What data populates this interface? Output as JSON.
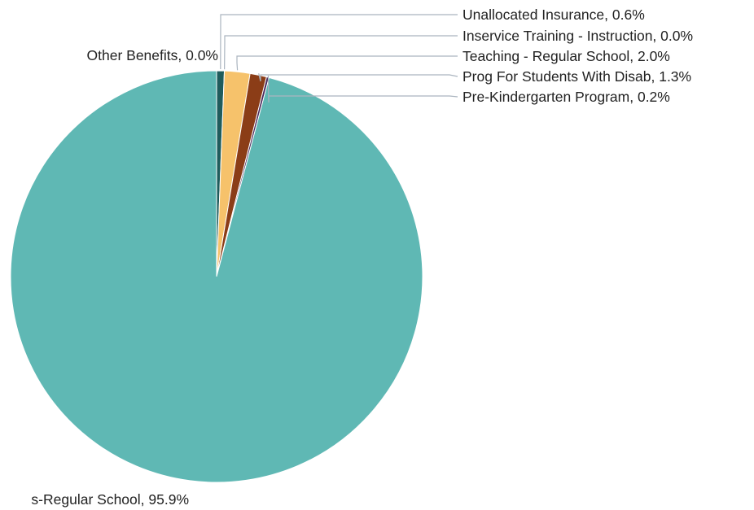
{
  "chart_data": {
    "type": "pie",
    "title": "",
    "slices": [
      {
        "label": "Other Benefits",
        "value": 0.0,
        "display": "Other Benefits, 0.0%",
        "color": "#1f5c5c"
      },
      {
        "label": "Unallocated Insurance",
        "value": 0.6,
        "display": "Unallocated Insurance, 0.6%",
        "color": "#1f5c5c"
      },
      {
        "label": "Inservice Training - Instruction",
        "value": 0.0,
        "display": "Inservice Training - Instruction, 0.0%",
        "color": "#5aa6a6"
      },
      {
        "label": "Teaching - Regular School",
        "value": 2.0,
        "display": "Teaching - Regular School, 2.0%",
        "color": "#f6c26b"
      },
      {
        "label": "Prog For Students With Disab",
        "value": 1.3,
        "display": "Prog For Students With Disab, 1.3%",
        "color": "#8b3d17"
      },
      {
        "label": "Pre-Kindergarten Program",
        "value": 0.2,
        "display": "Pre-Kindergarten Program, 0.2%",
        "color": "#4a2a5c"
      },
      {
        "label": "s-Regular School",
        "value": 95.9,
        "display": "s-Regular School, 95.9%",
        "color": "#5fb8b4"
      }
    ]
  }
}
